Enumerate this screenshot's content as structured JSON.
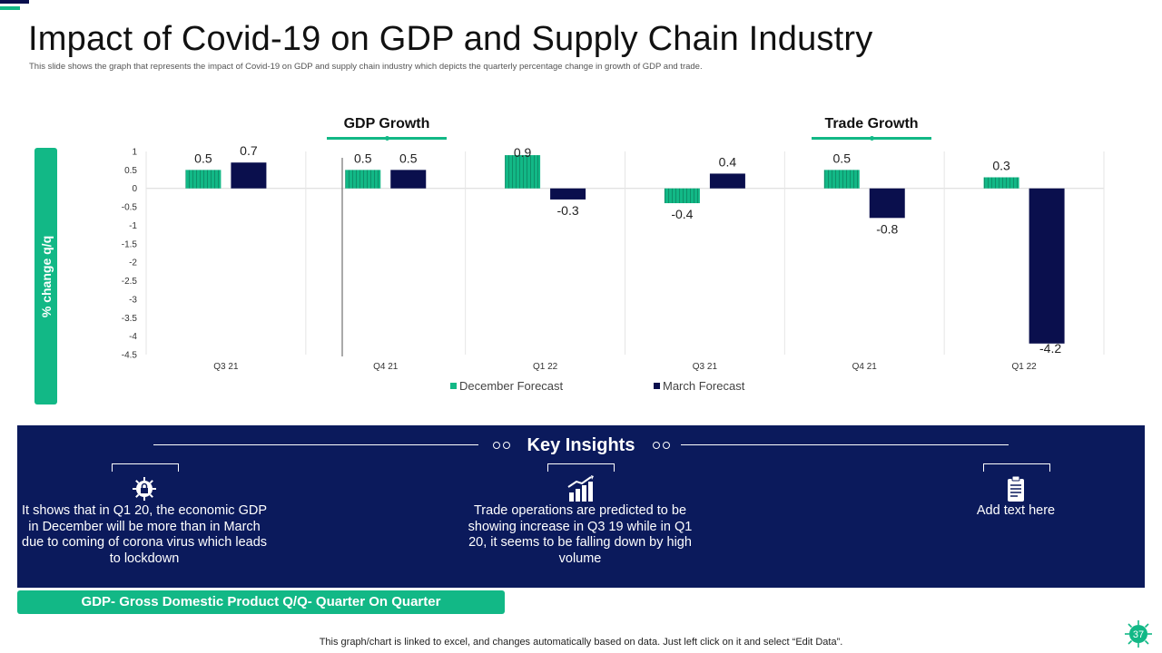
{
  "slide": {
    "title": "Impact of Covid-19 on GDP and Supply Chain Industry",
    "subtitle": "This slide shows the graph that represents the impact of Covid-19 on GDP  and supply chain industry which depicts the quarterly percentage change in growth of GDP and trade.",
    "page_number": "37",
    "footer": "This graph/chart is linked to excel,  and changes automatically based on data. Just left click on it and select “Edit Data”."
  },
  "colors": {
    "teal": "#12b886",
    "navy": "#0a0f4d",
    "insights_bg": "#0b1a5c"
  },
  "chart_data": {
    "type": "bar",
    "title": "",
    "ylabel": "% change q/q",
    "xlabel": "",
    "ylim": [
      -4.5,
      1
    ],
    "yticks": [
      1,
      0.5,
      0,
      -0.5,
      -1,
      -1.5,
      -2,
      -2.5,
      -3,
      -3.5,
      -4,
      -4.5
    ],
    "group_labels": [
      "GDP Growth",
      "Trade Growth"
    ],
    "categories": [
      "Q3 21",
      "Q4 21",
      "Q1 22",
      "Q3 21",
      "Q4 21",
      "Q1 22"
    ],
    "series": [
      {
        "name": "December Forecast",
        "color": "#12b886",
        "values": [
          0.5,
          0.5,
          0.9,
          -0.4,
          0.5,
          0.3
        ]
      },
      {
        "name": "March Forecast",
        "color": "#0a0f4d",
        "values": [
          0.7,
          0.5,
          -0.3,
          0.4,
          -0.8,
          -4.2
        ]
      }
    ],
    "data_labels": {
      "December Forecast": [
        "0.5",
        "0.5",
        "0.9",
        "-0.4",
        "0.5",
        "0.3"
      ],
      "March Forecast": [
        "0.7",
        "0.5",
        "-0.3",
        "0.4",
        "-0.8",
        "-4.2"
      ]
    },
    "legend": "bottom-center"
  },
  "insights": {
    "title": "Key Insights",
    "items": [
      {
        "icon": "virus-lock-icon",
        "text": "It shows that in Q1 20, the economic GDP in December will be more than in March due to coming of corona virus which leads to lockdown"
      },
      {
        "icon": "growth-chart-icon",
        "text": "Trade operations are predicted to be showing increase in Q3 19 while in Q1 20, it seems to be falling down by high volume"
      },
      {
        "icon": "clipboard-icon",
        "text": "Add text here"
      }
    ]
  },
  "bottom_note": "GDP- Gross Domestic Product Q/Q- Quarter On Quarter"
}
